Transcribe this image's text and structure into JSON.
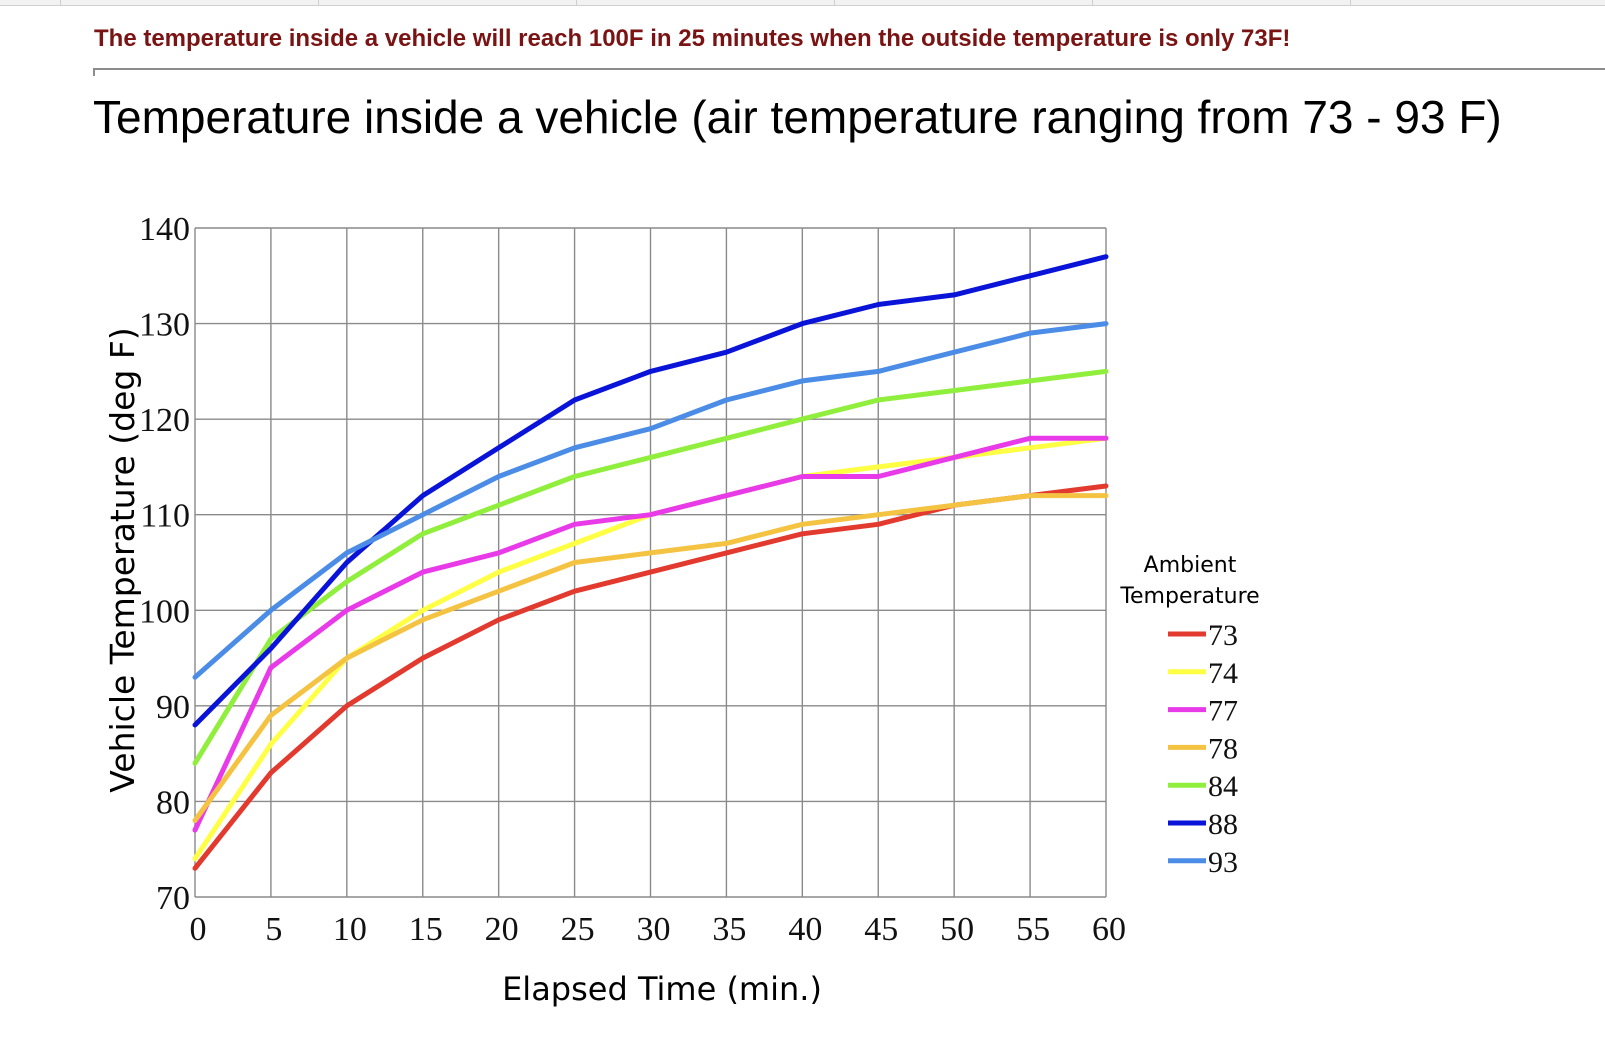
{
  "page": {
    "warning_text": "The temperature inside a vehicle will reach 100F in 25 minutes when the outside temperature is only 73F!"
  },
  "chart_data": {
    "type": "line",
    "title": "Temperature inside a vehicle (air temperature ranging from 73 - 93 F)",
    "xlabel": "Elapsed Time (min.)",
    "ylabel": "Vehicle Temperature (deg F)",
    "xlim": [
      0,
      60
    ],
    "ylim": [
      70,
      140
    ],
    "x_ticks": [
      0,
      5,
      10,
      15,
      20,
      25,
      30,
      35,
      40,
      45,
      50,
      55,
      60
    ],
    "y_ticks": [
      70,
      80,
      90,
      100,
      110,
      120,
      130,
      140
    ],
    "grid": true,
    "legend_title": "Ambient Temperature",
    "legend_position": "right",
    "x": [
      0,
      5,
      10,
      15,
      20,
      25,
      30,
      35,
      40,
      45,
      50,
      55,
      60
    ],
    "series": [
      {
        "name": "73",
        "color": "#e23a2e",
        "values": [
          73,
          83,
          90,
          95,
          99,
          102,
          104,
          106,
          108,
          109,
          111,
          112,
          113
        ]
      },
      {
        "name": "74",
        "color": "#ffff44",
        "values": [
          74,
          86,
          95,
          100,
          104,
          107,
          110,
          112,
          114,
          115,
          116,
          117,
          118
        ]
      },
      {
        "name": "77",
        "color": "#e83ae8",
        "values": [
          77,
          94,
          100,
          104,
          106,
          109,
          110,
          112,
          114,
          114,
          116,
          118,
          118
        ]
      },
      {
        "name": "78",
        "color": "#f5c342",
        "values": [
          78,
          89,
          95,
          99,
          102,
          105,
          106,
          107,
          109,
          110,
          111,
          112,
          112
        ]
      },
      {
        "name": "84",
        "color": "#90ee3c",
        "values": [
          84,
          97,
          103,
          108,
          111,
          114,
          116,
          118,
          120,
          122,
          123,
          124,
          125
        ]
      },
      {
        "name": "88",
        "color": "#0a14d8",
        "values": [
          88,
          96,
          105,
          112,
          117,
          122,
          125,
          127,
          130,
          132,
          133,
          135,
          137
        ]
      },
      {
        "name": "93",
        "color": "#4a8ce6",
        "values": [
          93,
          100,
          106,
          110,
          114,
          117,
          119,
          122,
          124,
          125,
          127,
          129,
          130
        ]
      }
    ]
  }
}
